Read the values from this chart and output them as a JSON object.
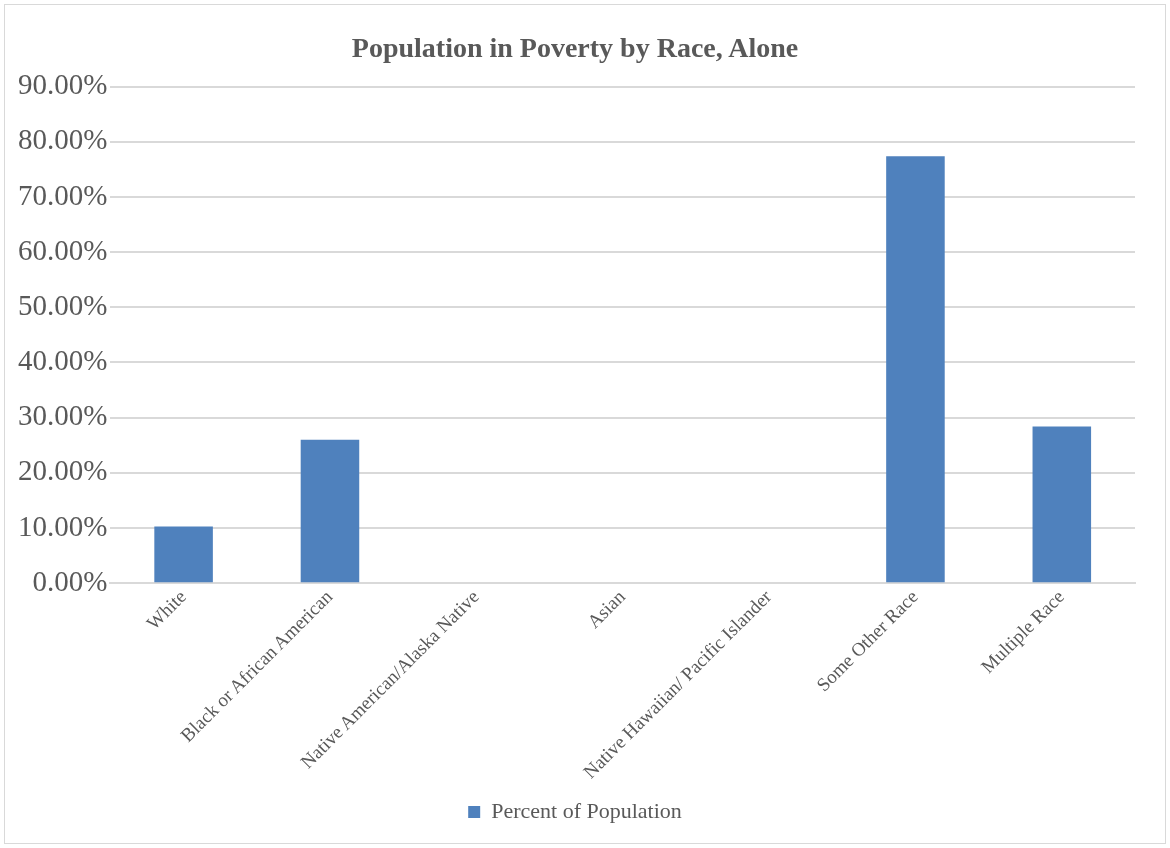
{
  "chart_data": {
    "type": "bar",
    "title": "Population in Poverty by Race, Alone",
    "categories": [
      "White",
      "Black or African American",
      "Native American/Alaska Native",
      "Asian",
      "Native Hawaiian/ Pacific Islander",
      "Some Other Race",
      "Multiple Race"
    ],
    "series": [
      {
        "name": "Percent of Population",
        "color": "#4f81bd",
        "values": [
          10.3,
          26.0,
          0,
          0,
          0,
          77.4,
          28.4
        ]
      }
    ],
    "ylim": [
      0,
      90
    ],
    "yticks": [
      {
        "value": 0,
        "label": "0.00%"
      },
      {
        "value": 10,
        "label": "10.00%"
      },
      {
        "value": 20,
        "label": "20.00%"
      },
      {
        "value": 30,
        "label": "30.00%"
      },
      {
        "value": 40,
        "label": "40.00%"
      },
      {
        "value": 50,
        "label": "50.00%"
      },
      {
        "value": 60,
        "label": "60.00%"
      },
      {
        "value": 70,
        "label": "70.00%"
      },
      {
        "value": 80,
        "label": "80.00%"
      },
      {
        "value": 90,
        "label": "90.00%"
      }
    ],
    "grid": "y",
    "legend": "bottom"
  }
}
